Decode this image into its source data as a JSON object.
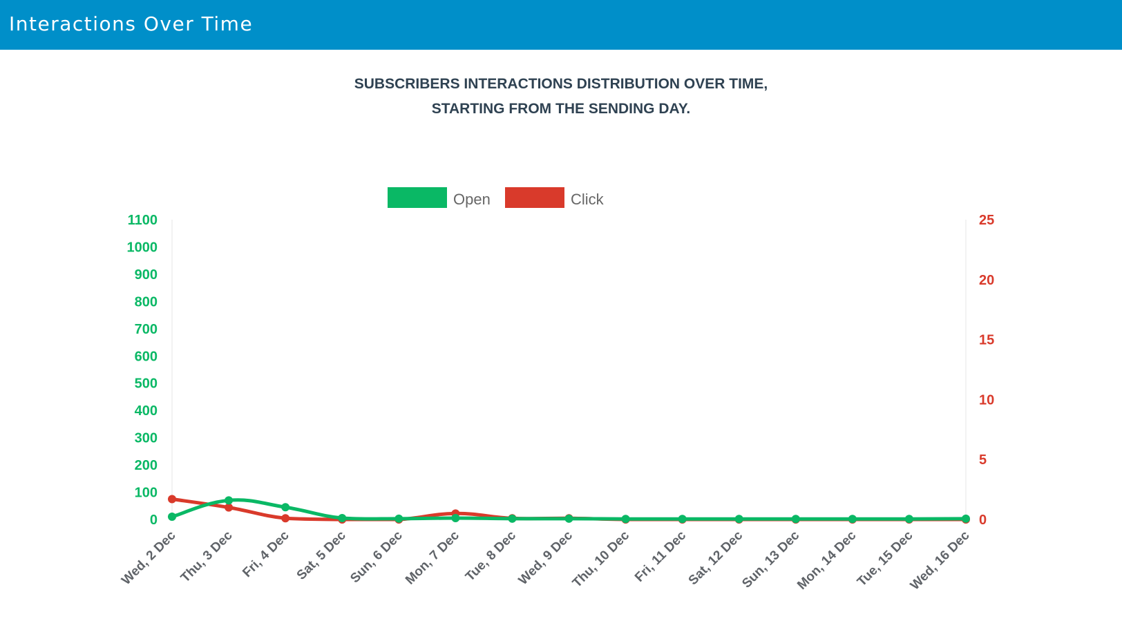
{
  "header": {
    "title": "Interactions Over Time"
  },
  "colors": {
    "header_bg": "#008fc9",
    "open": "#0ab865",
    "click": "#d93a2b"
  },
  "chart_data": {
    "type": "line",
    "title_lines": [
      "SUBSCRIBERS INTERACTIONS DISTRIBUTION OVER TIME,",
      "STARTING FROM THE SENDING DAY."
    ],
    "legend_position": "top-center",
    "grid": false,
    "categories": [
      "Wed, 2 Dec",
      "Thu, 3 Dec",
      "Fri, 4 Dec",
      "Sat, 5 Dec",
      "Sun, 6 Dec",
      "Mon, 7 Dec",
      "Tue, 8 Dec",
      "Wed, 9 Dec",
      "Thu, 10 Dec",
      "Fri, 11 Dec",
      "Sat, 12 Dec",
      "Sun, 13 Dec",
      "Mon, 14 Dec",
      "Tue, 15 Dec",
      "Wed, 16 Dec"
    ],
    "left_axis": {
      "ylim": [
        0,
        1100
      ],
      "ticks": [
        0,
        100,
        200,
        300,
        400,
        500,
        600,
        700,
        800,
        900,
        1000,
        1100
      ]
    },
    "right_axis": {
      "ylim": [
        0,
        25
      ],
      "ticks": [
        0,
        5,
        10,
        15,
        20,
        25
      ]
    },
    "series": [
      {
        "name": "Open",
        "axis": "left",
        "color": "#0ab865",
        "values": [
          10,
          70,
          45,
          5,
          3,
          5,
          3,
          3,
          2,
          2,
          2,
          2,
          2,
          2,
          3
        ]
      },
      {
        "name": "Click",
        "axis": "right",
        "color": "#d93a2b",
        "values": [
          1.7,
          1.0,
          0.1,
          0,
          0,
          0.5,
          0.1,
          0.1,
          0,
          0,
          0,
          0,
          0,
          0,
          0
        ]
      }
    ]
  }
}
